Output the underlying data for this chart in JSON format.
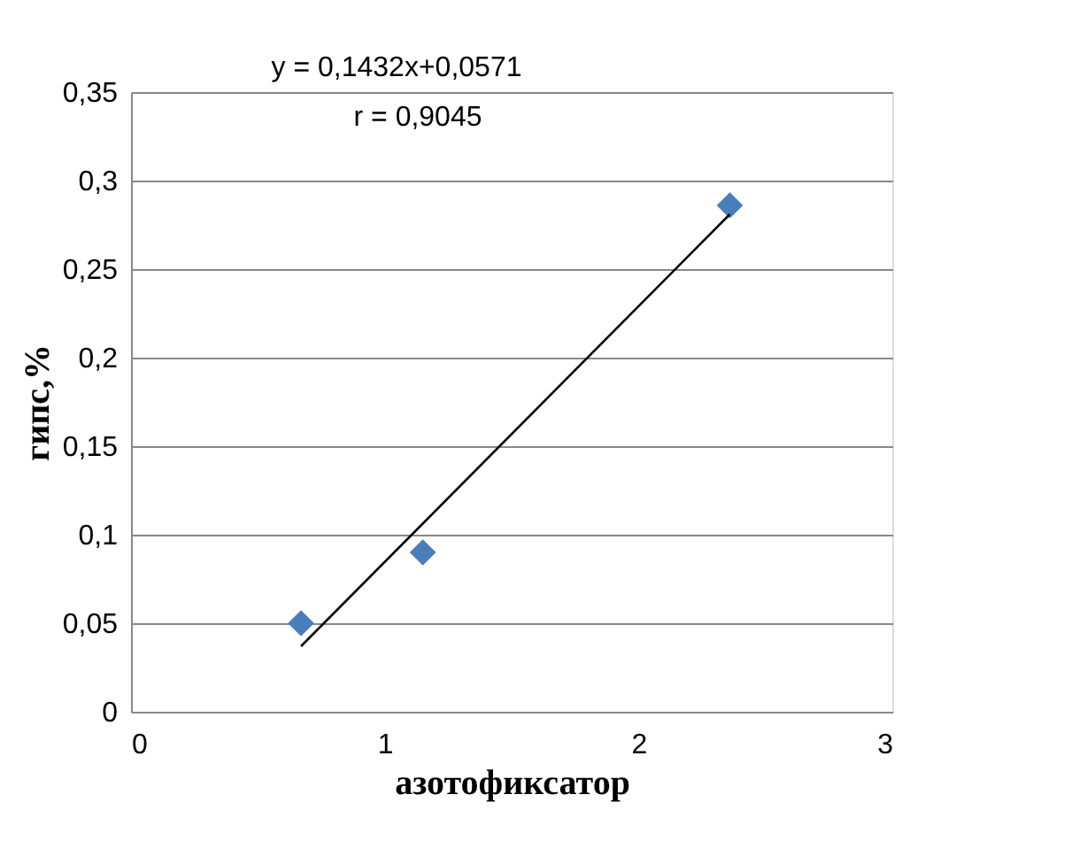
{
  "chart_data": {
    "type": "scatter",
    "xlabel": "азотофиксатор",
    "ylabel": "гипс,%",
    "annotations": [
      "y = 0,1432x+0,0571",
      "r = 0,9045"
    ],
    "series": [
      {
        "color": "#4a7ebb",
        "marker": "diamond",
        "x": [
          0.67,
          1.15,
          2.36
        ],
        "values": [
          0.05,
          0.09,
          0.286
        ]
      },
      {
        "type": "line",
        "color": "#000000",
        "line_style": "solid",
        "x": [
          0.67,
          2.36
        ],
        "values": [
          0.037,
          0.281
        ]
      }
    ],
    "xlim": [
      0,
      3
    ],
    "xticks": [
      0,
      1,
      2,
      3
    ],
    "ylim": [
      0,
      0.35
    ],
    "yticks": [
      0,
      {
        "value": 0.05,
        "label": "0,05"
      },
      {
        "value": 0.1,
        "label": "0,1"
      },
      {
        "value": 0.15,
        "label": "0,15"
      },
      {
        "value": 0.2,
        "label": "0,2"
      },
      {
        "value": 0.25,
        "label": "0,25"
      },
      {
        "value": 0.3,
        "label": "0,3"
      },
      {
        "value": 0.35,
        "label": "0,35"
      }
    ],
    "grid": "y"
  }
}
